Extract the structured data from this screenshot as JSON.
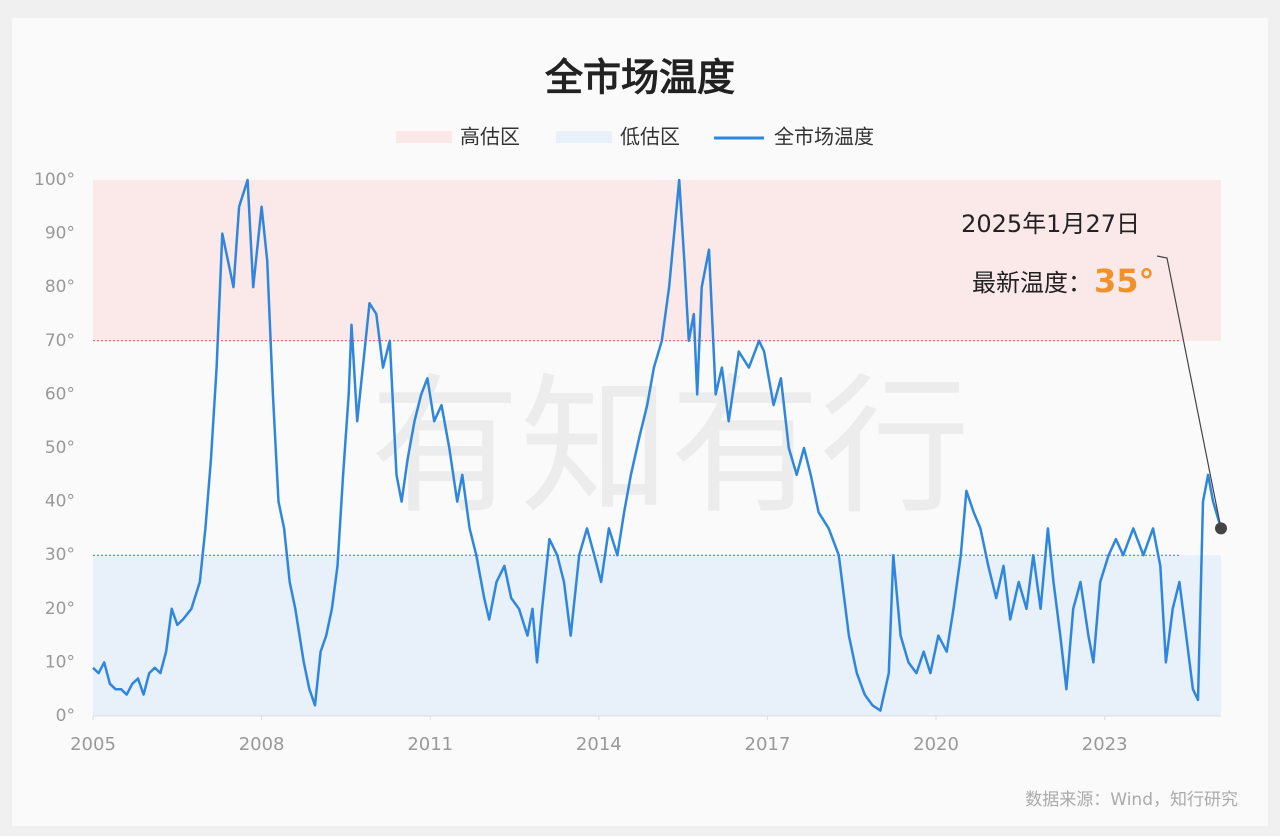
{
  "chart_data": {
    "type": "line",
    "title": "全市场温度",
    "watermark": "有知有行",
    "source": "数据来源：Wind，知行研究",
    "bands": [
      {
        "name": "高估区",
        "range": [
          70,
          100
        ],
        "color": "#fbe9e9",
        "line_color": "#e05555"
      },
      {
        "name": "低估区",
        "range": [
          0,
          30
        ],
        "color": "#e8f0f9",
        "line_color": "#3a7cc8"
      }
    ],
    "x": [
      2005.0,
      2005.1,
      2005.2,
      2005.3,
      2005.4,
      2005.5,
      2005.6,
      2005.7,
      2005.8,
      2005.9,
      2006.0,
      2006.1,
      2006.2,
      2006.3,
      2006.4,
      2006.5,
      2006.6,
      2006.75,
      2006.9,
      2007.0,
      2007.1,
      2007.2,
      2007.3,
      2007.4,
      2007.5,
      2007.6,
      2007.75,
      2007.85,
      2008.0,
      2008.1,
      2008.2,
      2008.3,
      2008.4,
      2008.5,
      2008.6,
      2008.75,
      2008.85,
      2008.95,
      2009.05,
      2009.15,
      2009.25,
      2009.35,
      2009.45,
      2009.55,
      2009.6,
      2009.7,
      2009.8,
      2009.92,
      2010.04,
      2010.16,
      2010.28,
      2010.4,
      2010.49,
      2010.6,
      2010.72,
      2010.84,
      2010.95,
      2011.07,
      2011.2,
      2011.34,
      2011.48,
      2011.57,
      2011.7,
      2011.82,
      2011.96,
      2012.05,
      2012.18,
      2012.32,
      2012.44,
      2012.58,
      2012.73,
      2012.82,
      2012.9,
      2012.99,
      2013.12,
      2013.26,
      2013.38,
      2013.5,
      2013.65,
      2013.79,
      2013.92,
      2014.04,
      2014.18,
      2014.33,
      2014.45,
      2014.57,
      2014.72,
      2014.86,
      2014.98,
      2015.12,
      2015.25,
      2015.43,
      2015.52,
      2015.6,
      2015.69,
      2015.75,
      2015.83,
      2015.96,
      2016.08,
      2016.19,
      2016.31,
      2016.49,
      2016.67,
      2016.85,
      2016.94,
      2017.11,
      2017.24,
      2017.38,
      2017.52,
      2017.65,
      2017.77,
      2017.91,
      2018.09,
      2018.27,
      2018.45,
      2018.59,
      2018.73,
      2018.87,
      2019.01,
      2019.16,
      2019.24,
      2019.37,
      2019.51,
      2019.65,
      2019.78,
      2019.9,
      2020.04,
      2020.19,
      2020.31,
      2020.44,
      2020.54,
      2020.67,
      2020.79,
      2020.93,
      2021.07,
      2021.2,
      2021.32,
      2021.47,
      2021.61,
      2021.73,
      2021.86,
      2021.99,
      2022.09,
      2022.21,
      2022.32,
      2022.44,
      2022.57,
      2022.71,
      2022.8,
      2022.92,
      2023.07,
      2023.2,
      2023.33,
      2023.51,
      2023.69,
      2023.86,
      2023.99,
      2024.09,
      2024.21,
      2024.33,
      2024.45,
      2024.57,
      2024.66,
      2024.75,
      2024.84,
      2024.93,
      2025.07
    ],
    "series": [
      {
        "name": "全市场温度",
        "color": "#2f86dd",
        "values": [
          9,
          8,
          10,
          6,
          5,
          5,
          4,
          6,
          7,
          4,
          8,
          9,
          8,
          12,
          20,
          17,
          18,
          20,
          25,
          35,
          48,
          65,
          90,
          85,
          80,
          95,
          100,
          80,
          95,
          85,
          60,
          40,
          35,
          25,
          20,
          10,
          5,
          2,
          12,
          15,
          20,
          28,
          45,
          60,
          73,
          55,
          65,
          77,
          75,
          65,
          70,
          45,
          40,
          48,
          55,
          60,
          63,
          55,
          58,
          50,
          40,
          45,
          35,
          30,
          22,
          18,
          25,
          28,
          22,
          20,
          15,
          20,
          10,
          20,
          33,
          30,
          25,
          15,
          30,
          35,
          30,
          25,
          35,
          30,
          38,
          45,
          52,
          58,
          65,
          70,
          80,
          100,
          85,
          70,
          75,
          60,
          80,
          87,
          60,
          65,
          55,
          68,
          65,
          70,
          68,
          58,
          63,
          50,
          45,
          50,
          45,
          38,
          35,
          30,
          15,
          8,
          4,
          2,
          1,
          8,
          30,
          15,
          10,
          8,
          12,
          8,
          15,
          12,
          20,
          30,
          42,
          38,
          35,
          28,
          22,
          28,
          18,
          25,
          20,
          30,
          20,
          35,
          25,
          15,
          5,
          20,
          25,
          15,
          10,
          25,
          30,
          33,
          30,
          35,
          30,
          35,
          28,
          10,
          20,
          25,
          15,
          5,
          3,
          40,
          45,
          40,
          35
        ]
      }
    ],
    "annotation": {
      "date": "2025年1月27日",
      "label": "最新温度：",
      "value_label": "35°"
    },
    "xlim": [
      2005,
      2025.07
    ],
    "xticks": [
      2005,
      2008,
      2011,
      2014,
      2017,
      2020,
      2023
    ],
    "ylim": [
      0,
      100
    ],
    "yticks": [
      {
        "value": 0,
        "label": "0°"
      },
      {
        "value": 10,
        "label": "10°"
      },
      {
        "value": 20,
        "label": "20°"
      },
      {
        "value": 30,
        "label": "30°"
      },
      {
        "value": 40,
        "label": "40°"
      },
      {
        "value": 50,
        "label": "50°"
      },
      {
        "value": 60,
        "label": "60°"
      },
      {
        "value": 70,
        "label": "70°"
      },
      {
        "value": 80,
        "label": "80°"
      },
      {
        "value": 90,
        "label": "90°"
      },
      {
        "value": 100,
        "label": "100°"
      }
    ]
  }
}
